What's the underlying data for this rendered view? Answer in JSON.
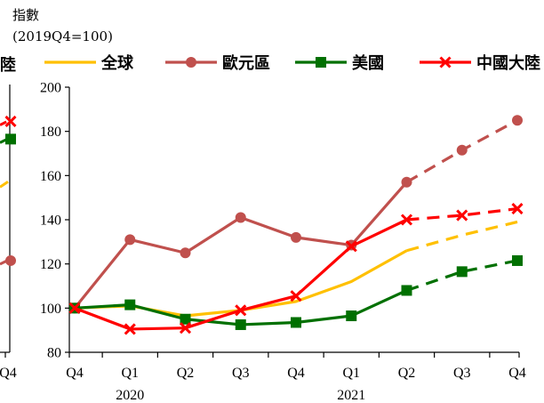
{
  "unit_label_line1": "指數",
  "unit_label_line2": "(2019Q4=100)",
  "chart_data": {
    "type": "line",
    "title": "",
    "ylim": [
      80,
      200
    ],
    "y_ticks": [
      "80",
      "100",
      "120",
      "140",
      "160",
      "180",
      "200"
    ],
    "categories": [
      "Q4",
      "Q1",
      "Q2",
      "Q3",
      "Q4",
      "Q1",
      "Q2",
      "Q3",
      "Q4"
    ],
    "year_labels": [
      "2020",
      "2021"
    ],
    "forecast_from_index": 6,
    "legend_position": "top",
    "series": [
      {
        "name": "全球",
        "color": "#FFC000",
        "marker": "none",
        "values": [
          100,
          101,
          96.5,
          99,
          103,
          112,
          126,
          133,
          139
        ]
      },
      {
        "name": "歐元區",
        "color": "#C0504D",
        "marker": "circle",
        "values": [
          100,
          131,
          125,
          141,
          132,
          128.5,
          157,
          171.5,
          185
        ]
      },
      {
        "name": "美國",
        "color": "#007000",
        "marker": "square",
        "values": [
          100,
          101.5,
          95,
          92.5,
          93.5,
          96.5,
          108,
          116.5,
          121.5
        ]
      },
      {
        "name": "中國大陸",
        "color": "#FF0000",
        "marker": "x",
        "values": [
          100,
          90.5,
          91,
          99,
          105.5,
          128,
          140,
          142,
          145
        ]
      }
    ],
    "left_panel_fragment": {
      "legend_text": "陸",
      "x_tick": "Q4",
      "points": [
        {
          "series": "中國大陸",
          "value": 184.5
        },
        {
          "series": "美國",
          "value": 176.5
        },
        {
          "series": "歐元區",
          "value": 121.5
        },
        {
          "series": "全球",
          "value": 156
        }
      ]
    }
  }
}
